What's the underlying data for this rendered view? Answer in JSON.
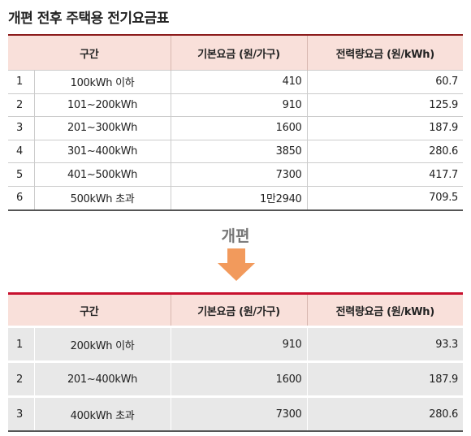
{
  "title": "개편 전후 주택용 전기요금표",
  "arrow_label": "개편",
  "tables": [
    {
      "headers": [
        "구간",
        "기본요금 (원/가구)",
        "전력량요금 (원/kWh)"
      ],
      "rows": [
        [
          "1",
          "100kWh 이하",
          "410",
          "60.7"
        ],
        [
          "2",
          "101~200kWh",
          "910",
          "125.9"
        ],
        [
          "3",
          "201~300kWh",
          "1600",
          "187.9"
        ],
        [
          "4",
          "301~400kWh",
          "3850",
          "280.6"
        ],
        [
          "5",
          "401~500kWh",
          "7300",
          "417.7"
        ],
        [
          "6",
          "500kWh 초과",
          "1만2940",
          "709.5"
        ]
      ]
    },
    {
      "headers": [
        "구간",
        "기본요금 (원/가구)",
        "전력량요금 (원/kWh)"
      ],
      "rows": [
        [
          "1",
          "200kWh 이하",
          "910",
          "93.3"
        ],
        [
          "2",
          "201~400kWh",
          "1600",
          "187.9"
        ],
        [
          "3",
          "400kWh 초과",
          "7300",
          "280.6"
        ]
      ]
    }
  ]
}
